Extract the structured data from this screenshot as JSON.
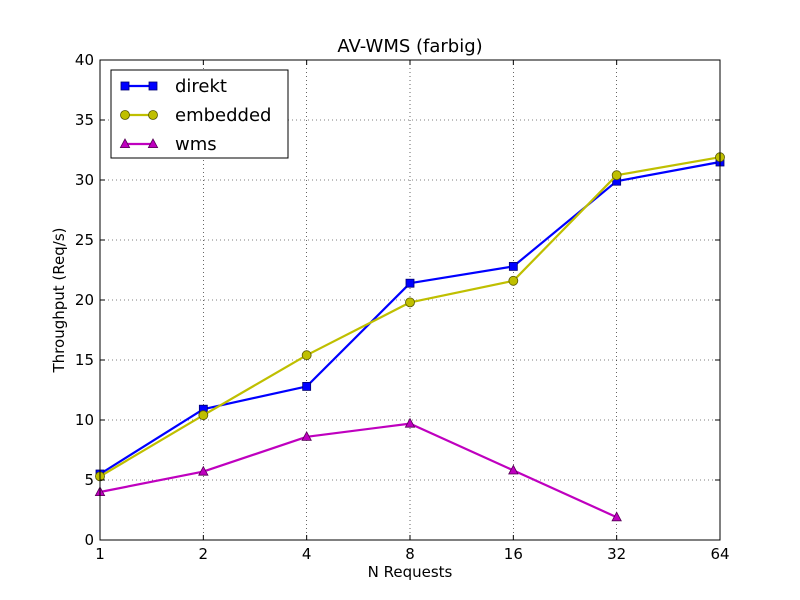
{
  "chart_data": {
    "type": "line",
    "title": "AV-WMS (farbig)",
    "xlabel": "N Requests",
    "ylabel": "Throughput (Req/s)",
    "x_scale": "log2",
    "x": [
      1,
      2,
      4,
      8,
      16,
      32,
      64
    ],
    "x_tick_labels": [
      "1",
      "2",
      "4",
      "8",
      "16",
      "32",
      "64"
    ],
    "xlim": [
      1,
      64
    ],
    "ylim": [
      0,
      40
    ],
    "y_ticks": [
      0,
      5,
      10,
      15,
      20,
      25,
      30,
      35,
      40
    ],
    "grid": true,
    "legend_position": "top-left",
    "series": [
      {
        "name": "direkt",
        "color": "#0000ff",
        "marker": "square",
        "x": [
          1,
          2,
          4,
          8,
          16,
          32,
          64
        ],
        "values": [
          5.5,
          10.9,
          12.8,
          21.4,
          22.8,
          29.9,
          31.5
        ]
      },
      {
        "name": "embedded",
        "color": "#bfbf00",
        "marker": "circle",
        "x": [
          1,
          2,
          4,
          8,
          16,
          32,
          64
        ],
        "values": [
          5.3,
          10.4,
          15.4,
          19.8,
          21.6,
          30.4,
          31.9
        ]
      },
      {
        "name": "wms",
        "color": "#bf00bf",
        "marker": "triangle",
        "x": [
          1,
          2,
          4,
          8,
          16,
          32
        ],
        "values": [
          4.0,
          5.7,
          8.6,
          9.7,
          5.8,
          1.9
        ]
      }
    ]
  }
}
